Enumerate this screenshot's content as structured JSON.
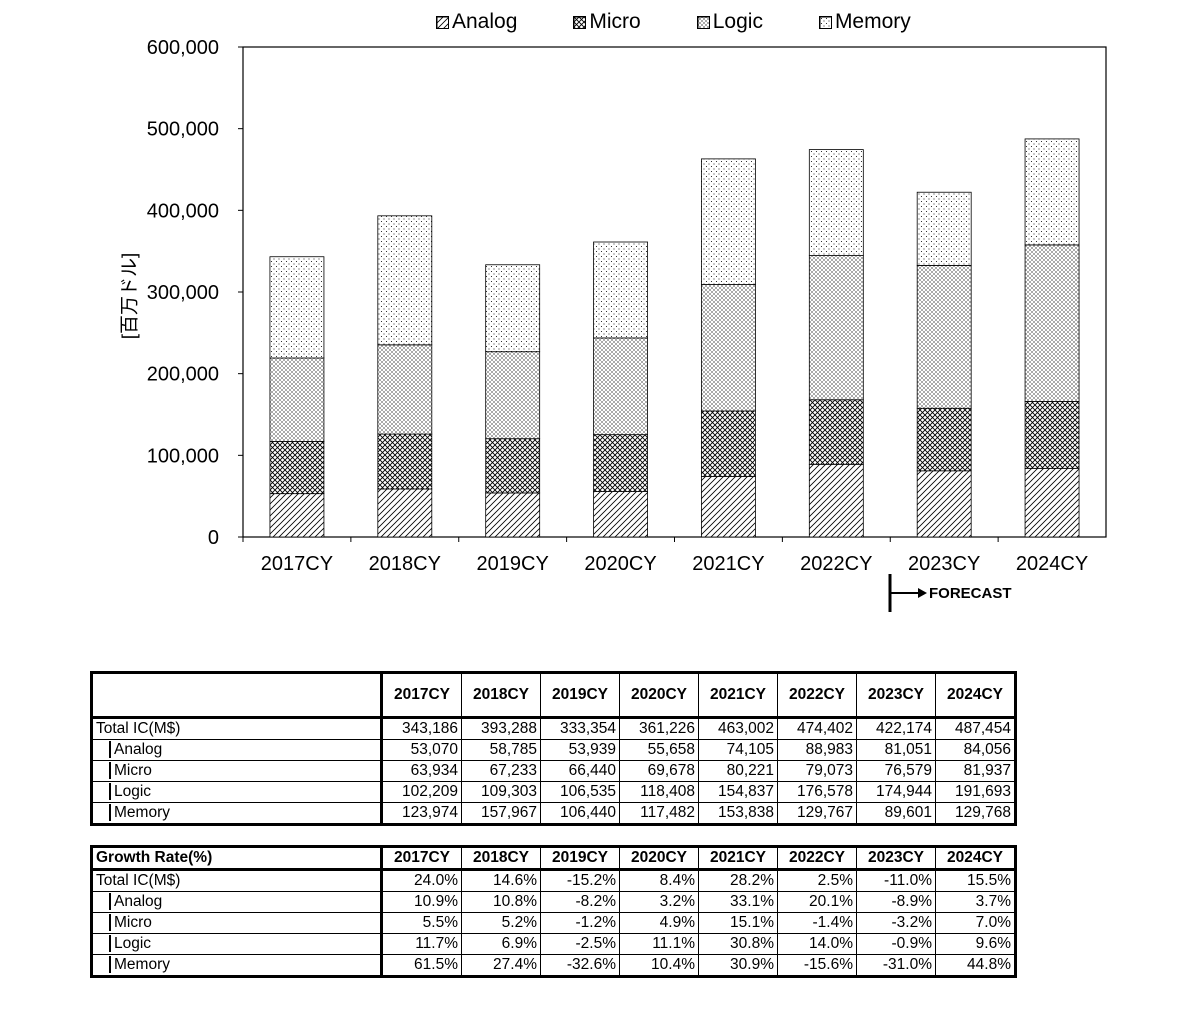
{
  "chart_data": {
    "type": "bar",
    "stacked": true,
    "categories": [
      "2017CY",
      "2018CY",
      "2019CY",
      "2020CY",
      "2021CY",
      "2022CY",
      "2023CY",
      "2024CY"
    ],
    "series": [
      {
        "name": "Analog",
        "values": [
          53070,
          58785,
          53939,
          55658,
          74105,
          88983,
          81051,
          84056
        ]
      },
      {
        "name": "Micro",
        "values": [
          63934,
          67233,
          66440,
          69678,
          80221,
          79073,
          76579,
          81937
        ]
      },
      {
        "name": "Logic",
        "values": [
          102209,
          109303,
          106535,
          118408,
          154837,
          176578,
          174944,
          191693
        ]
      },
      {
        "name": "Memory",
        "values": [
          123974,
          157967,
          106440,
          117482,
          153838,
          129767,
          89601,
          129768
        ]
      }
    ],
    "ylabel": "[百万ドル]",
    "ylim": [
      0,
      600000
    ],
    "yticks": [
      "0",
      "100,000",
      "200,000",
      "300,000",
      "400,000",
      "500,000",
      "600,000"
    ],
    "legend_position": "top",
    "annotation": "FORECAST",
    "forecast_start": "2023CY"
  },
  "tables": {
    "years": [
      "2017CY",
      "2018CY",
      "2019CY",
      "2020CY",
      "2021CY",
      "2022CY",
      "2023CY",
      "2024CY"
    ],
    "values": {
      "header_label": "",
      "rows": [
        {
          "label": "Total IC(M$)",
          "values": [
            "343,186",
            "393,288",
            "333,354",
            "361,226",
            "463,002",
            "474,402",
            "422,174",
            "487,454"
          ]
        },
        {
          "label": "Analog",
          "values": [
            "53,070",
            "58,785",
            "53,939",
            "55,658",
            "74,105",
            "88,983",
            "81,051",
            "84,056"
          ]
        },
        {
          "label": "Micro",
          "values": [
            "63,934",
            "67,233",
            "66,440",
            "69,678",
            "80,221",
            "79,073",
            "76,579",
            "81,937"
          ]
        },
        {
          "label": "Logic",
          "values": [
            "102,209",
            "109,303",
            "106,535",
            "118,408",
            "154,837",
            "176,578",
            "174,944",
            "191,693"
          ]
        },
        {
          "label": "Memory",
          "values": [
            "123,974",
            "157,967",
            "106,440",
            "117,482",
            "153,838",
            "129,767",
            "89,601",
            "129,768"
          ]
        }
      ]
    },
    "growth": {
      "header_label": "Growth Rate(%)",
      "rows": [
        {
          "label": "Total IC(M$)",
          "values": [
            "24.0%",
            "14.6%",
            "-15.2%",
            "8.4%",
            "28.2%",
            "2.5%",
            "-11.0%",
            "15.5%"
          ]
        },
        {
          "label": "Analog",
          "values": [
            "10.9%",
            "10.8%",
            "-8.2%",
            "3.2%",
            "33.1%",
            "20.1%",
            "-8.9%",
            "3.7%"
          ]
        },
        {
          "label": "Micro",
          "values": [
            "5.5%",
            "5.2%",
            "-1.2%",
            "4.9%",
            "15.1%",
            "-1.4%",
            "-3.2%",
            "7.0%"
          ]
        },
        {
          "label": "Logic",
          "values": [
            "11.7%",
            "6.9%",
            "-2.5%",
            "11.1%",
            "30.8%",
            "14.0%",
            "-0.9%",
            "9.6%"
          ]
        },
        {
          "label": "Memory",
          "values": [
            "61.5%",
            "27.4%",
            "-32.6%",
            "10.4%",
            "30.9%",
            "-15.6%",
            "-31.0%",
            "44.8%"
          ]
        }
      ]
    }
  }
}
